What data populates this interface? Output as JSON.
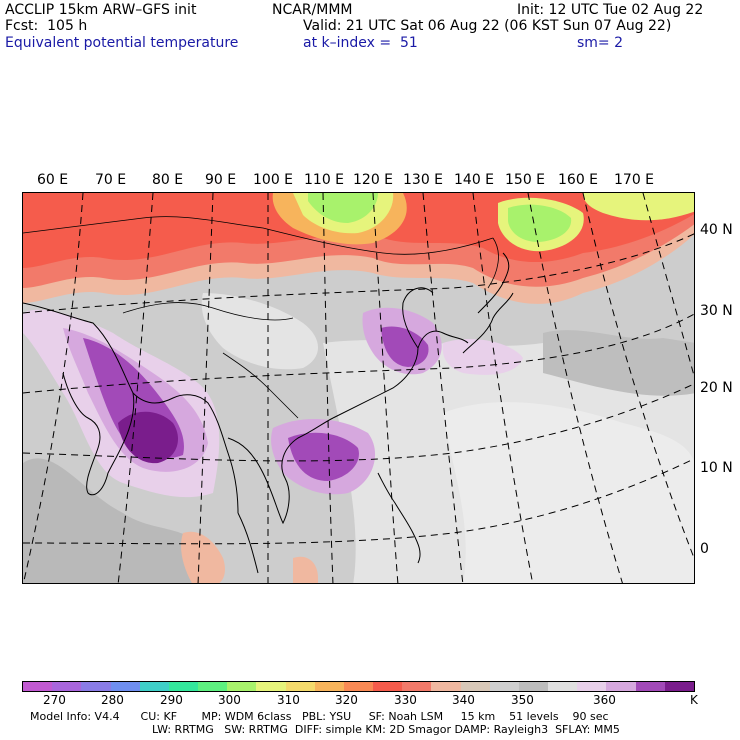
{
  "header": {
    "model": "ACCLIP 15km ARW–GFS init",
    "center": "NCAR/MMM",
    "init": "Init: 12 UTC Tue 02 Aug 22",
    "fcst": "Fcst:  105 h",
    "valid": "Valid: 21 UTC Sat 06 Aug 22 (06 KST Sun 07 Aug 22)",
    "field": "Equivalent potential temperature",
    "level": "at k–index =  51",
    "smoothing": "sm= 2"
  },
  "map": {
    "lon_labels": [
      "60 E",
      "70 E",
      "80 E",
      "90 E",
      "100 E",
      "110 E",
      "120 E",
      "130 E",
      "140 E",
      "150 E",
      "160 E",
      "170 E"
    ],
    "lat_labels": [
      "40 N",
      "30 N",
      "20 N",
      "10 N",
      "0"
    ]
  },
  "colorbar": {
    "colors": [
      "#c25ad2",
      "#a966dc",
      "#8a7ce6",
      "#6f8ff0",
      "#3fcfc8",
      "#34e79c",
      "#5ef080",
      "#a8f26c",
      "#e6f47c",
      "#f4da6c",
      "#f7b45c",
      "#f98a55",
      "#f55c4c",
      "#f27a6a",
      "#f0b8a0",
      "#d8c8b8",
      "#cfcfcf",
      "#bdbdbd",
      "#e0e0e0",
      "#e8d0ea",
      "#d6a8de",
      "#a24ab8",
      "#7a1d8c"
    ],
    "labels": [
      "270",
      "280",
      "290",
      "300",
      "310",
      "320",
      "330",
      "340",
      "350",
      "360",
      "K"
    ]
  },
  "footer": {
    "line1": "Model Info: V4.4      CU: KF       MP: WDM 6class   PBL: YSU     SF: Noah LSM     15 km    51 levels    90 sec",
    "line2": "LW: RRTMG   SW: RRTMG  DIFF: simple KM: 2D Smagor DAMP: Rayleigh3  SFLAY: MM5"
  }
}
